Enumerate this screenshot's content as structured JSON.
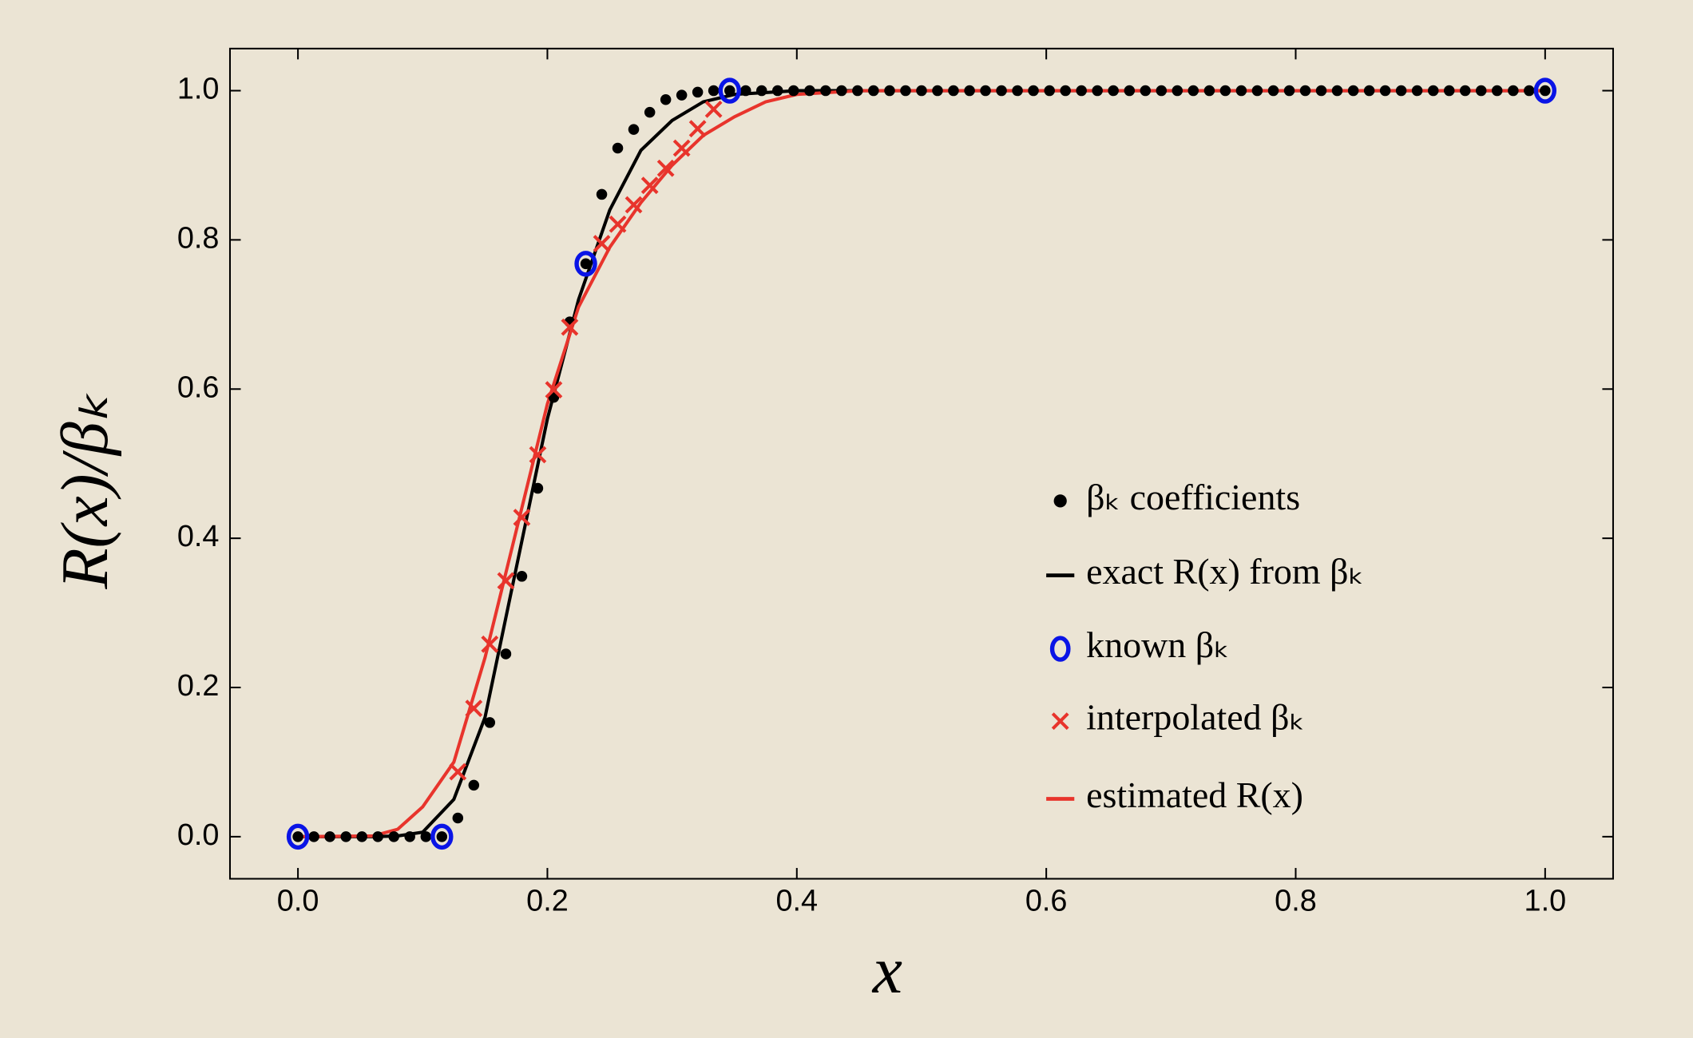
{
  "chart_data": {
    "type": "line",
    "xlabel": "x",
    "ylabel": "R(x)/βₖ",
    "xlim": [
      -0.0545,
      1.0545
    ],
    "ylim": [
      -0.0564,
      1.0564
    ],
    "xticks": [
      {
        "value": 0,
        "label": "0.0"
      },
      0.2,
      0.4,
      0.6,
      0.8,
      {
        "value": 1,
        "label": "1.0"
      }
    ],
    "yticks": [
      {
        "value": 0,
        "label": "0.0"
      },
      0.2,
      0.4,
      0.6,
      0.8,
      {
        "value": 1,
        "label": "1.0"
      }
    ],
    "series": [
      {
        "name": "βₖ coefficients",
        "style": "dots",
        "color": "#000000",
        "x": [
          0,
          0.0128,
          0.0256,
          0.0385,
          0.0513,
          0.0641,
          0.0769,
          0.0897,
          0.1026,
          0.1154,
          0.1282,
          0.141,
          0.1538,
          0.1667,
          0.1795,
          0.1923,
          0.2051,
          0.2179,
          0.2308,
          0.2436,
          0.2564,
          0.2692,
          0.2821,
          0.2949,
          0.3077,
          0.3205,
          0.3333,
          0.3462,
          0.359,
          0.3718,
          0.3846,
          0.3974,
          0.4103,
          0.4231,
          0.4359,
          0.4487,
          0.4615,
          0.4744,
          0.4872,
          0.5,
          0.5128,
          0.5256,
          0.5385,
          0.5513,
          0.5641,
          0.5769,
          0.5897,
          0.6026,
          0.6154,
          0.6282,
          0.641,
          0.6538,
          0.6667,
          0.6795,
          0.6923,
          0.7051,
          0.7179,
          0.7308,
          0.7436,
          0.7564,
          0.7692,
          0.7821,
          0.7949,
          0.8077,
          0.8205,
          0.8333,
          0.8462,
          0.859,
          0.8718,
          0.8846,
          0.8974,
          0.9103,
          0.9231,
          0.9359,
          0.9487,
          0.9615,
          0.9744,
          0.9872,
          1
        ],
        "values": [
          0,
          0,
          0,
          0,
          0,
          0,
          0,
          0,
          0,
          0,
          0.025,
          0.069,
          0.153,
          0.245,
          0.349,
          0.467,
          0.589,
          0.69,
          0.768,
          0.861,
          0.923,
          0.948,
          0.971,
          0.988,
          0.994,
          0.998,
          1,
          1,
          1,
          1,
          1,
          1,
          1,
          1,
          1,
          1,
          1,
          1,
          1,
          1,
          1,
          1,
          1,
          1,
          1,
          1,
          1,
          1,
          1,
          1,
          1,
          1,
          1,
          1,
          1,
          1,
          1,
          1,
          1,
          1,
          1,
          1,
          1,
          1,
          1,
          1,
          1,
          1,
          1,
          1,
          1,
          1,
          1,
          1,
          1,
          1,
          1,
          1,
          1
        ]
      },
      {
        "name": "exact R(x) from βₖ",
        "style": "line",
        "color": "#000000",
        "x": [
          0,
          0.06,
          0.08,
          0.1,
          0.125,
          0.15,
          0.175,
          0.2,
          0.225,
          0.25,
          0.275,
          0.3,
          0.325,
          0.35,
          0.4,
          1
        ],
        "values": [
          0,
          0,
          0.001,
          0.006,
          0.05,
          0.16,
          0.36,
          0.56,
          0.72,
          0.84,
          0.92,
          0.96,
          0.985,
          0.995,
          1,
          1
        ]
      },
      {
        "name": "known βₖ",
        "style": "circles",
        "color": "#0a14e6",
        "x": [
          0,
          0.1154,
          0.2308,
          0.3462,
          1
        ],
        "values": [
          0,
          0,
          0.768,
          1,
          1
        ]
      },
      {
        "name": "interpolated βₖ",
        "style": "crosses",
        "color": "#e8342c",
        "x": [
          0.1282,
          0.141,
          0.1538,
          0.1667,
          0.1795,
          0.1923,
          0.2051,
          0.2179,
          0.2436,
          0.2564,
          0.2692,
          0.2821,
          0.2949,
          0.3077,
          0.3205,
          0.3333
        ],
        "values": [
          0.087,
          0.172,
          0.258,
          0.343,
          0.428,
          0.512,
          0.599,
          0.683,
          0.795,
          0.821,
          0.847,
          0.873,
          0.896,
          0.923,
          0.949,
          0.975
        ]
      },
      {
        "name": "estimated R(x)",
        "style": "line",
        "color": "#e8342c",
        "x": [
          0,
          0.06,
          0.08,
          0.1,
          0.125,
          0.15,
          0.175,
          0.2,
          0.225,
          0.25,
          0.275,
          0.3,
          0.325,
          0.35,
          0.375,
          0.4,
          0.45,
          1
        ],
        "values": [
          0,
          0.001,
          0.01,
          0.04,
          0.1,
          0.24,
          0.41,
          0.58,
          0.71,
          0.79,
          0.85,
          0.9,
          0.94,
          0.965,
          0.985,
          0.995,
          1,
          1
        ]
      }
    ]
  }
}
